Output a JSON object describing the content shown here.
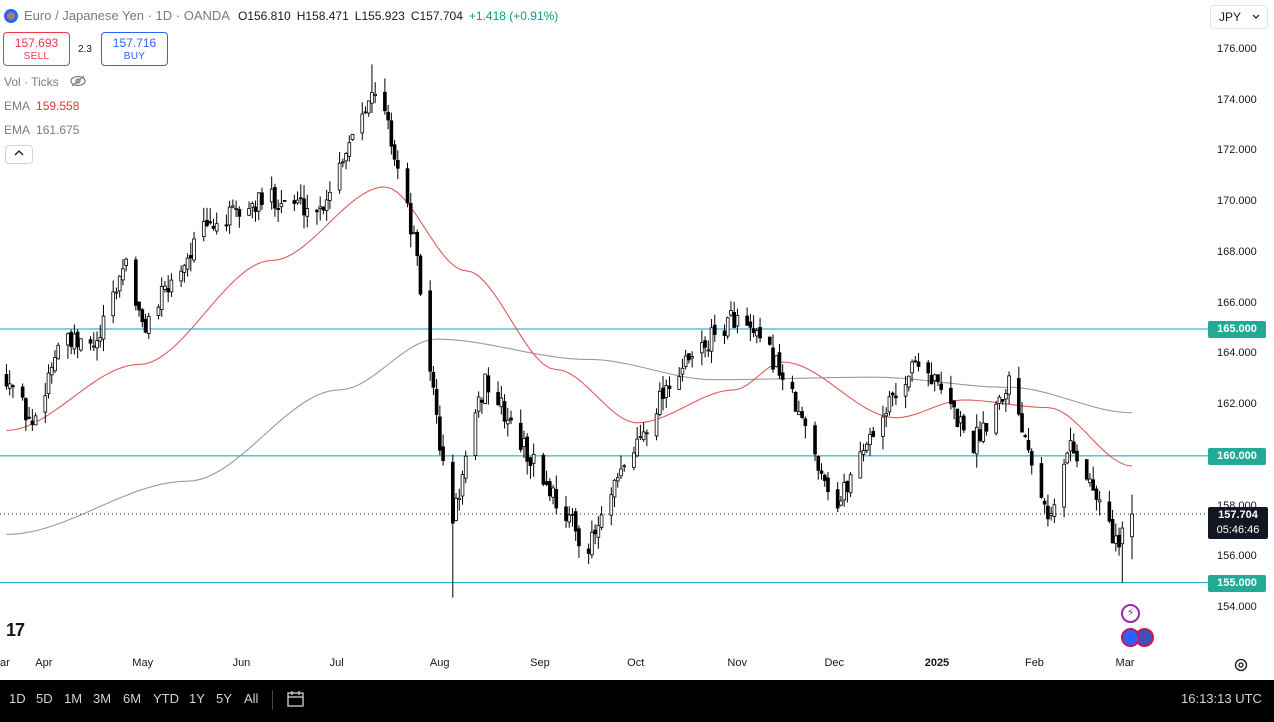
{
  "header": {
    "title": "Euro / Japanese Yen · 1D · OANDA",
    "open_key": "O",
    "open": "156.810",
    "high_key": "H",
    "high": "158.471",
    "low_key": "L",
    "low": "155.923",
    "close_key": "C",
    "close": "157.704",
    "change": "+1.418 (+0.91%)"
  },
  "trade": {
    "sell_price": "157.693",
    "sell_label": "SELL",
    "spread": "2.3",
    "buy_price": "157.716",
    "buy_label": "BUY"
  },
  "indicators": {
    "vol_label": "Vol · Ticks",
    "ema1_label": "EMA",
    "ema1_value": "159.558",
    "ema2_label": "EMA",
    "ema2_value": "161.675",
    "collapse_glyph": "^"
  },
  "currency_button": "JPY",
  "price_axis": [
    {
      "v": 176,
      "label": "176.000"
    },
    {
      "v": 174,
      "label": "174.000"
    },
    {
      "v": 172,
      "label": "172.000"
    },
    {
      "v": 170,
      "label": "170.000"
    },
    {
      "v": 168,
      "label": "168.000"
    },
    {
      "v": 166,
      "label": "166.000"
    },
    {
      "v": 164,
      "label": "164.000"
    },
    {
      "v": 162,
      "label": "162.000"
    },
    {
      "v": 158,
      "label": "158.000"
    },
    {
      "v": 156,
      "label": "156.000"
    },
    {
      "v": 154,
      "label": "154.000"
    }
  ],
  "level_tags": {
    "l165": "165.000",
    "l160": "160.000",
    "l155": "155.000"
  },
  "last_price": {
    "price": "157.704",
    "countdown": "05:46:46"
  },
  "time_axis": [
    {
      "label": "ar"
    },
    {
      "label": "Apr"
    },
    {
      "label": "May"
    },
    {
      "label": "Jun"
    },
    {
      "label": "Jul"
    },
    {
      "label": "Aug"
    },
    {
      "label": "Sep"
    },
    {
      "label": "Oct"
    },
    {
      "label": "Nov"
    },
    {
      "label": "Dec"
    },
    {
      "label": "2025"
    },
    {
      "label": "Feb"
    },
    {
      "label": "Mar"
    }
  ],
  "toolbar": {
    "ranges": [
      "1D",
      "5D",
      "1M",
      "3M",
      "6M",
      "YTD",
      "1Y",
      "5Y",
      "All"
    ],
    "clock": "16:13:13 UTC"
  },
  "logo_text": "17",
  "colors": {
    "up": "#ffffff",
    "down": "#000000",
    "wick": "#000000",
    "ema_short": "#e05a5a",
    "ema_long": "#9a9a9a",
    "levels": "#00a6b8",
    "tag": "#22ab94"
  },
  "chart_data": {
    "type": "candlestick",
    "symbol": "EURJPY",
    "timeframe": "1D",
    "ylim": [
      153.2,
      176.8
    ],
    "horizontal_levels": [
      165.0,
      160.0,
      155.0
    ],
    "last_close": 157.704,
    "anchors": [
      {
        "date": "2024-03-20",
        "close": 163.2
      },
      {
        "date": "2024-03-28",
        "close": 161.2
      },
      {
        "date": "2024-04-05",
        "close": 164.4
      },
      {
        "date": "2024-04-17",
        "close": 164.3
      },
      {
        "date": "2024-04-26",
        "close": 167.8
      },
      {
        "date": "2024-05-01",
        "close": 165.0
      },
      {
        "date": "2024-05-20",
        "close": 168.9
      },
      {
        "date": "2024-06-10",
        "close": 170.2
      },
      {
        "date": "2024-06-25",
        "close": 169.7
      },
      {
        "date": "2024-07-10",
        "close": 174.3
      },
      {
        "date": "2024-07-15",
        "close": 173.6
      },
      {
        "date": "2024-07-24",
        "close": 168.5
      },
      {
        "date": "2024-08-02",
        "close": 159.5
      },
      {
        "date": "2024-08-05",
        "close": 157.5
      },
      {
        "date": "2024-08-15",
        "close": 163.0
      },
      {
        "date": "2024-08-26",
        "close": 160.5
      },
      {
        "date": "2024-09-16",
        "close": 156.3
      },
      {
        "date": "2024-09-27",
        "close": 159.5
      },
      {
        "date": "2024-10-10",
        "close": 162.8
      },
      {
        "date": "2024-10-31",
        "close": 165.5
      },
      {
        "date": "2024-11-13",
        "close": 163.7
      },
      {
        "date": "2024-12-02",
        "close": 158.0
      },
      {
        "date": "2024-12-10",
        "close": 160.4
      },
      {
        "date": "2024-12-27",
        "close": 163.9
      },
      {
        "date": "2025-01-13",
        "close": 160.5
      },
      {
        "date": "2025-01-24",
        "close": 163.0
      },
      {
        "date": "2025-02-06",
        "close": 157.5
      },
      {
        "date": "2025-02-12",
        "close": 160.6
      },
      {
        "date": "2025-02-27",
        "close": 156.4
      },
      {
        "date": "2025-03-03",
        "close": 157.7
      }
    ],
    "extremes": [
      {
        "date": "2024-07-11",
        "high": 175.43
      },
      {
        "date": "2024-08-05",
        "low": 154.41
      },
      {
        "date": "2025-02-28",
        "low": 155.0
      }
    ],
    "ema_short": [
      {
        "date": "2024-03-20",
        "v": 161.0
      },
      {
        "date": "2024-04-30",
        "v": 163.6
      },
      {
        "date": "2024-06-10",
        "v": 167.7
      },
      {
        "date": "2024-07-15",
        "v": 170.6
      },
      {
        "date": "2024-08-09",
        "v": 167.3
      },
      {
        "date": "2024-09-06",
        "v": 163.4
      },
      {
        "date": "2024-10-01",
        "v": 161.3
      },
      {
        "date": "2024-10-31",
        "v": 162.6
      },
      {
        "date": "2024-11-15",
        "v": 163.7
      },
      {
        "date": "2024-12-20",
        "v": 161.5
      },
      {
        "date": "2025-01-10",
        "v": 162.2
      },
      {
        "date": "2025-02-05",
        "v": 161.9
      },
      {
        "date": "2025-03-03",
        "v": 159.6
      }
    ],
    "ema_long": [
      {
        "date": "2024-03-20",
        "v": 156.9
      },
      {
        "date": "2024-05-15",
        "v": 159.0
      },
      {
        "date": "2024-07-01",
        "v": 162.6
      },
      {
        "date": "2024-07-31",
        "v": 164.6
      },
      {
        "date": "2024-09-16",
        "v": 163.8
      },
      {
        "date": "2024-10-25",
        "v": 163.0
      },
      {
        "date": "2024-12-13",
        "v": 163.1
      },
      {
        "date": "2025-01-24",
        "v": 162.7
      },
      {
        "date": "2025-03-03",
        "v": 161.7
      }
    ]
  }
}
